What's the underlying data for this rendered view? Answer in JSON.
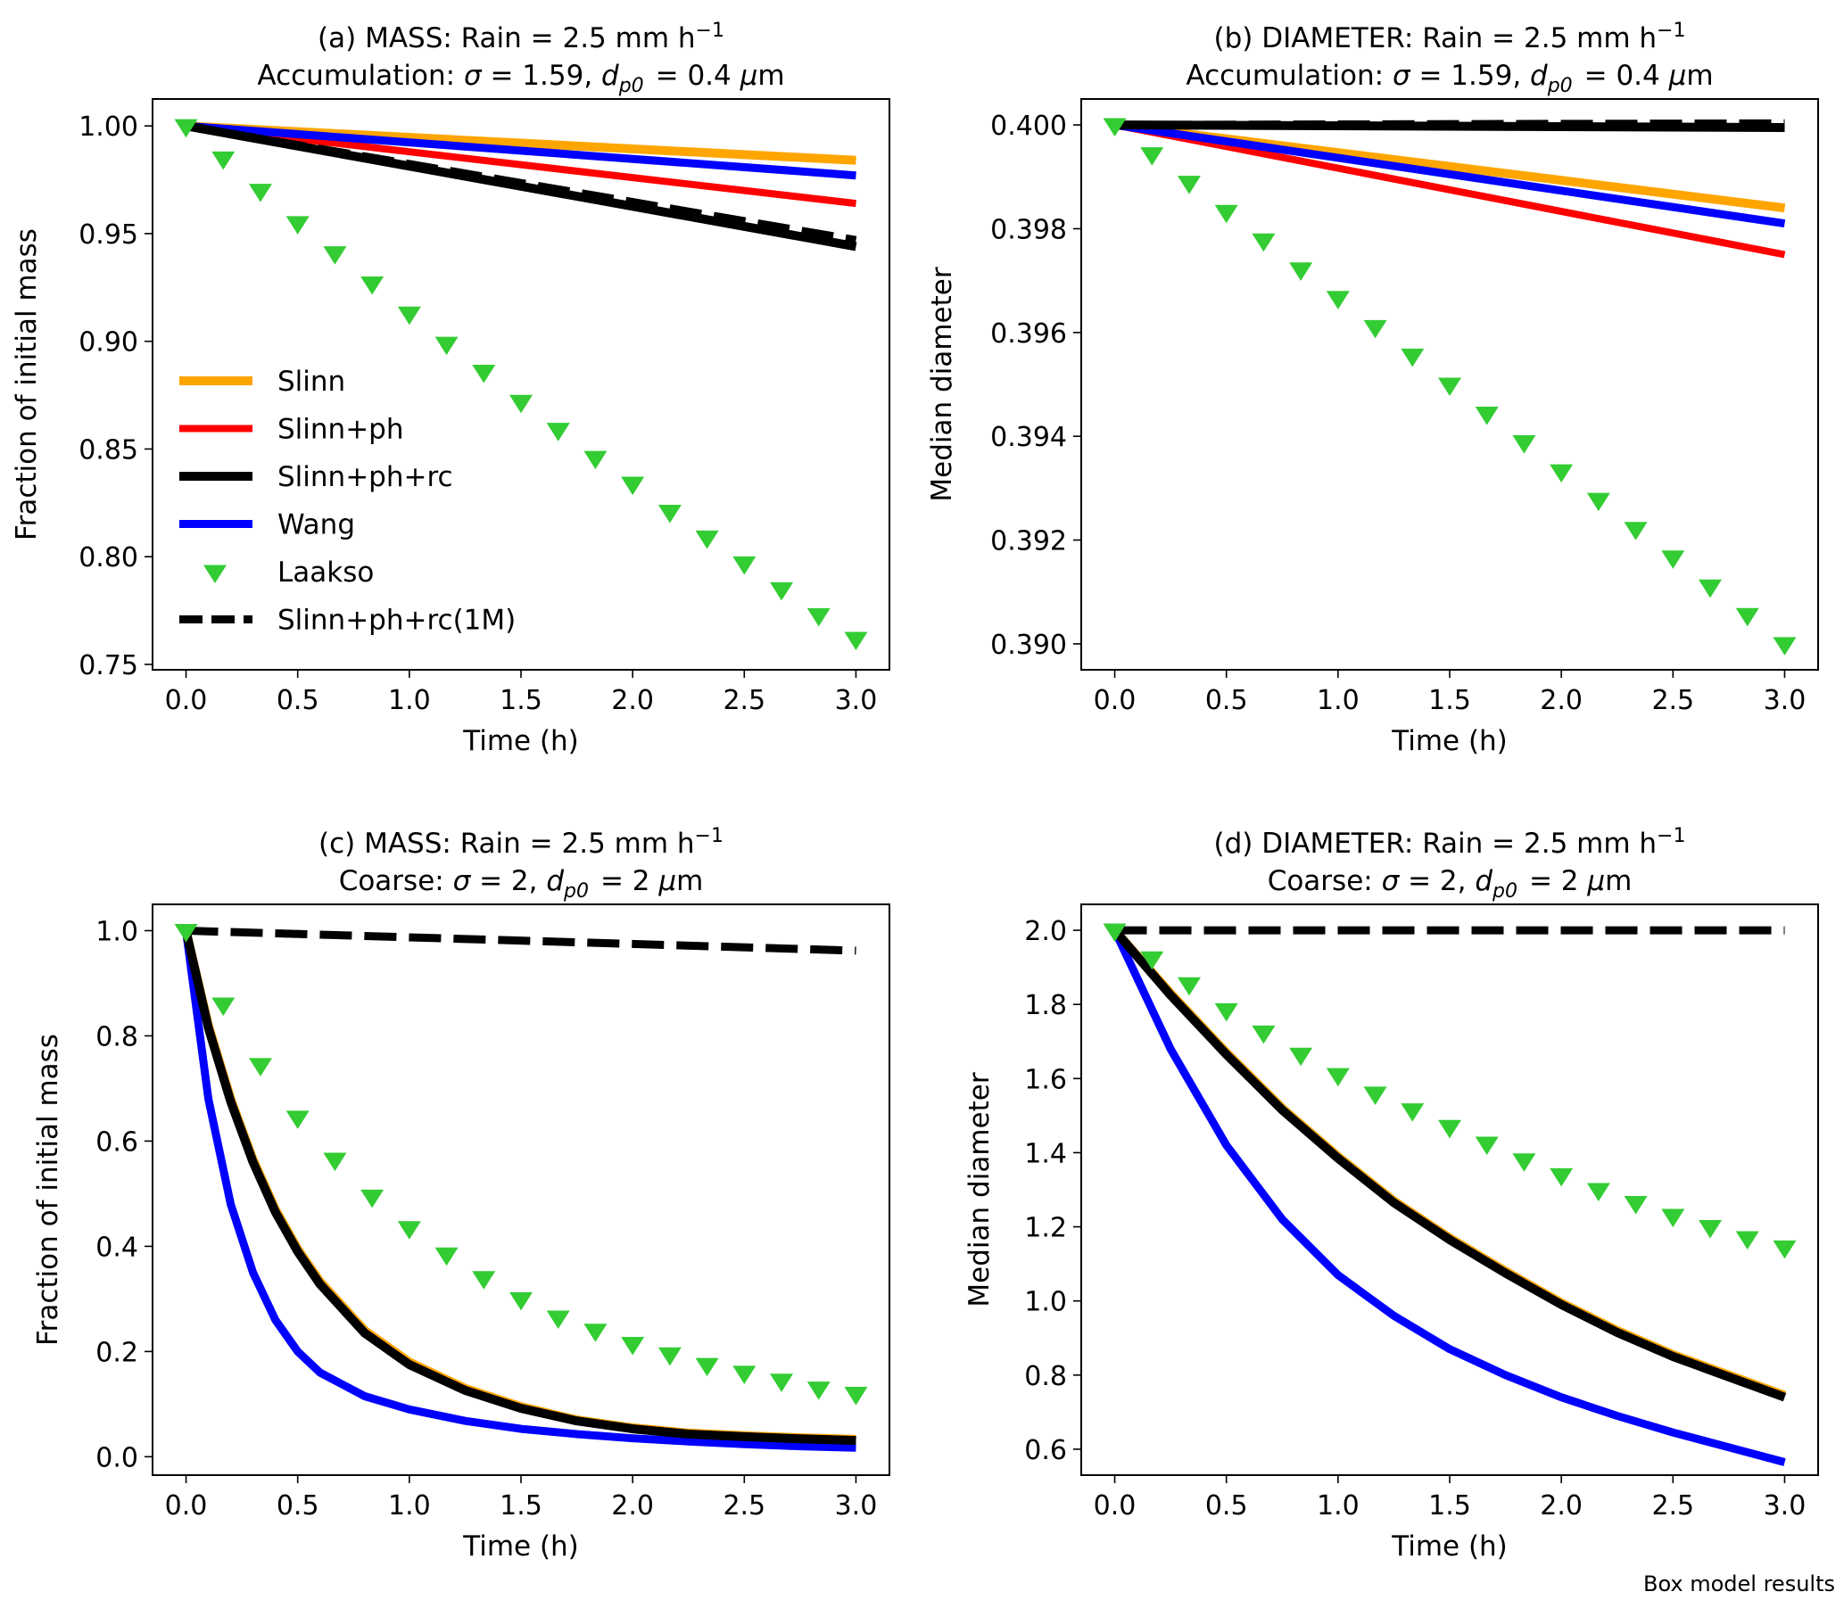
{
  "footer": "Box model results",
  "colors": {
    "Slinn": "#ffa500",
    "Slinn+ph": "#ff0000",
    "Slinn+ph+rc": "#000000",
    "Wang": "#0000ff",
    "Laakso": "#33cc33",
    "Slinn+ph+rc(1M)": "#000000"
  },
  "chart_data": [
    {
      "type": "line",
      "title_prefix": "(a) MASS: Rain = 2.5 mm h",
      "title_sup": "−1",
      "subtitle": "Accumulation: σ = 1.59, d_p0 = 0.4 μm",
      "xlabel": "Time (h)",
      "ylabel": "Fraction of initial mass",
      "xlim": [
        -0.15,
        3.15
      ],
      "ylim": [
        0.7475,
        1.0125
      ],
      "xticks": [
        "0.0",
        "0.5",
        "1.0",
        "1.5",
        "2.0",
        "2.5",
        "3.0"
      ],
      "yticks": [
        "0.75",
        "0.80",
        "0.85",
        "0.90",
        "0.95",
        "1.00"
      ],
      "legend": "center-left",
      "series": [
        {
          "name": "Slinn",
          "style": "line",
          "x": [
            0,
            3
          ],
          "y": [
            1.0,
            0.984
          ]
        },
        {
          "name": "Slinn+ph",
          "style": "line",
          "x": [
            0,
            3
          ],
          "y": [
            1.0,
            0.964
          ]
        },
        {
          "name": "Slinn+ph+rc",
          "style": "line",
          "x": [
            0,
            3
          ],
          "y": [
            1.0,
            0.944
          ]
        },
        {
          "name": "Wang",
          "style": "line",
          "x": [
            0,
            3
          ],
          "y": [
            1.0,
            0.977
          ]
        },
        {
          "name": "Laakso",
          "style": "markers",
          "x": [
            0,
            0.1667,
            0.3333,
            0.5,
            0.6667,
            0.8333,
            1.0,
            1.1667,
            1.3333,
            1.5,
            1.6667,
            1.8333,
            2.0,
            2.1667,
            2.3333,
            2.5,
            2.6667,
            2.8333,
            3.0
          ],
          "y": [
            1.0,
            0.985,
            0.97,
            0.955,
            0.941,
            0.927,
            0.913,
            0.899,
            0.886,
            0.872,
            0.859,
            0.846,
            0.834,
            0.821,
            0.809,
            0.797,
            0.785,
            0.773,
            0.762
          ]
        },
        {
          "name": "Slinn+ph+rc(1M)",
          "style": "dashed",
          "x": [
            0,
            3
          ],
          "y": [
            1.0,
            0.947
          ]
        }
      ]
    },
    {
      "type": "line",
      "title_prefix": "(b) DIAMETER: Rain = 2.5 mm h",
      "title_sup": "−1",
      "subtitle": "Accumulation: σ = 1.59, d_p0 = 0.4 μm",
      "xlabel": "Time (h)",
      "ylabel": "Median diameter",
      "xlim": [
        -0.15,
        3.15
      ],
      "ylim": [
        0.3895,
        0.4005
      ],
      "xticks": [
        "0.0",
        "0.5",
        "1.0",
        "1.5",
        "2.0",
        "2.5",
        "3.0"
      ],
      "yticks": [
        "0.390",
        "0.392",
        "0.394",
        "0.396",
        "0.398",
        "0.400"
      ],
      "series": [
        {
          "name": "Slinn",
          "style": "line",
          "x": [
            0,
            3
          ],
          "y": [
            0.4,
            0.3984
          ]
        },
        {
          "name": "Slinn+ph",
          "style": "line",
          "x": [
            0,
            3
          ],
          "y": [
            0.4,
            0.3975
          ]
        },
        {
          "name": "Slinn+ph+rc",
          "style": "line",
          "x": [
            0,
            3
          ],
          "y": [
            0.4,
            0.39995
          ]
        },
        {
          "name": "Wang",
          "style": "line",
          "x": [
            0,
            3
          ],
          "y": [
            0.4,
            0.3981
          ]
        },
        {
          "name": "Laakso",
          "style": "markers",
          "x": [
            0,
            0.1667,
            0.3333,
            0.5,
            0.6667,
            0.8333,
            1.0,
            1.1667,
            1.3333,
            1.5,
            1.6667,
            1.8333,
            2.0,
            2.1667,
            2.3333,
            2.5,
            2.6667,
            2.8333,
            3.0
          ],
          "y": [
            0.4,
            0.39944,
            0.39889,
            0.39833,
            0.39778,
            0.39722,
            0.39667,
            0.39611,
            0.39556,
            0.395,
            0.39444,
            0.39389,
            0.39333,
            0.39278,
            0.39222,
            0.39167,
            0.39111,
            0.39056,
            0.39
          ]
        },
        {
          "name": "Slinn+ph+rc(1M)",
          "style": "dashed",
          "x": [
            0,
            3
          ],
          "y": [
            0.4,
            0.40003
          ]
        }
      ]
    },
    {
      "type": "line",
      "title_prefix": "(c) MASS: Rain = 2.5 mm h",
      "title_sup": "−1",
      "subtitle": "Coarse: σ = 2, d_p0 = 2 μm",
      "xlabel": "Time (h)",
      "ylabel": "Fraction of initial mass",
      "xlim": [
        -0.15,
        3.15
      ],
      "ylim": [
        -0.035,
        1.05
      ],
      "xticks": [
        "0.0",
        "0.5",
        "1.0",
        "1.5",
        "2.0",
        "2.5",
        "3.0"
      ],
      "yticks": [
        "0.0",
        "0.2",
        "0.4",
        "0.6",
        "0.8",
        "1.0"
      ],
      "series": [
        {
          "name": "Slinn",
          "style": "line",
          "x": [
            0,
            0.1,
            0.2,
            0.3,
            0.4,
            0.5,
            0.6,
            0.8,
            1.0,
            1.25,
            1.5,
            1.75,
            2.0,
            2.25,
            2.5,
            2.75,
            3.0
          ],
          "y": [
            1.0,
            0.82,
            0.68,
            0.565,
            0.47,
            0.395,
            0.333,
            0.24,
            0.18,
            0.13,
            0.095,
            0.07,
            0.055,
            0.045,
            0.04,
            0.036,
            0.033
          ]
        },
        {
          "name": "Slinn+ph",
          "style": "line",
          "x": [
            0,
            0.1,
            0.2,
            0.3,
            0.4,
            0.5,
            0.6,
            0.8,
            1.0,
            1.25,
            1.5,
            1.75,
            2.0,
            2.25,
            2.5,
            2.75,
            3.0
          ],
          "y": [
            1.0,
            0.818,
            0.678,
            0.562,
            0.467,
            0.392,
            0.33,
            0.237,
            0.177,
            0.128,
            0.093,
            0.069,
            0.054,
            0.044,
            0.039,
            0.035,
            0.032
          ]
        },
        {
          "name": "Slinn+ph+rc",
          "style": "line",
          "x": [
            0,
            0.1,
            0.2,
            0.3,
            0.4,
            0.5,
            0.6,
            0.8,
            1.0,
            1.25,
            1.5,
            1.75,
            2.0,
            2.25,
            2.5,
            2.75,
            3.0
          ],
          "y": [
            1.0,
            0.815,
            0.675,
            0.56,
            0.465,
            0.39,
            0.328,
            0.235,
            0.175,
            0.126,
            0.092,
            0.068,
            0.053,
            0.043,
            0.038,
            0.034,
            0.031
          ]
        },
        {
          "name": "Wang",
          "style": "line",
          "x": [
            0,
            0.1,
            0.2,
            0.3,
            0.4,
            0.5,
            0.6,
            0.8,
            1.0,
            1.25,
            1.5,
            1.75,
            2.0,
            2.25,
            2.5,
            2.75,
            3.0
          ],
          "y": [
            1.0,
            0.68,
            0.48,
            0.35,
            0.26,
            0.2,
            0.16,
            0.115,
            0.09,
            0.068,
            0.053,
            0.043,
            0.035,
            0.029,
            0.024,
            0.02,
            0.017
          ]
        },
        {
          "name": "Laakso",
          "style": "markers",
          "x": [
            0,
            0.1667,
            0.3333,
            0.5,
            0.6667,
            0.8333,
            1.0,
            1.1667,
            1.3333,
            1.5,
            1.6667,
            1.8333,
            2.0,
            2.1667,
            2.3333,
            2.5,
            2.6667,
            2.8333,
            3.0
          ],
          "y": [
            1.0,
            0.86,
            0.745,
            0.645,
            0.565,
            0.495,
            0.435,
            0.385,
            0.34,
            0.3,
            0.265,
            0.24,
            0.215,
            0.195,
            0.175,
            0.16,
            0.145,
            0.13,
            0.12
          ]
        },
        {
          "name": "Slinn+ph+rc(1M)",
          "style": "dashed",
          "x": [
            0,
            3
          ],
          "y": [
            1.0,
            0.962
          ]
        }
      ]
    },
    {
      "type": "line",
      "title_prefix": "(d) DIAMETER: Rain = 2.5 mm h",
      "title_sup": "−1",
      "subtitle": "Coarse: σ = 2, d_p0 = 2 μm",
      "xlabel": "Time (h)",
      "ylabel": "Median diameter",
      "xlim": [
        -0.15,
        3.15
      ],
      "ylim": [
        0.53,
        2.07
      ],
      "xticks": [
        "0.0",
        "0.5",
        "1.0",
        "1.5",
        "2.0",
        "2.5",
        "3.0"
      ],
      "yticks": [
        "0.6",
        "0.8",
        "1.0",
        "1.2",
        "1.4",
        "1.6",
        "1.8",
        "2.0"
      ],
      "series": [
        {
          "name": "Slinn",
          "style": "line",
          "x": [
            0,
            0.25,
            0.5,
            0.75,
            1.0,
            1.25,
            1.5,
            1.75,
            2.0,
            2.25,
            2.5,
            2.75,
            3.0
          ],
          "y": [
            2.0,
            1.83,
            1.67,
            1.52,
            1.39,
            1.27,
            1.17,
            1.08,
            0.995,
            0.92,
            0.855,
            0.8,
            0.745
          ]
        },
        {
          "name": "Slinn+ph",
          "style": "line",
          "x": [
            0,
            0.25,
            0.5,
            0.75,
            1.0,
            1.25,
            1.5,
            1.75,
            2.0,
            2.25,
            2.5,
            2.75,
            3.0
          ],
          "y": [
            2.0,
            1.828,
            1.667,
            1.517,
            1.387,
            1.267,
            1.167,
            1.077,
            0.992,
            0.917,
            0.852,
            0.797,
            0.742
          ]
        },
        {
          "name": "Slinn+ph+rc",
          "style": "line",
          "x": [
            0,
            0.25,
            0.5,
            0.75,
            1.0,
            1.25,
            1.5,
            1.75,
            2.0,
            2.25,
            2.5,
            2.75,
            3.0
          ],
          "y": [
            2.0,
            1.825,
            1.665,
            1.515,
            1.385,
            1.265,
            1.165,
            1.075,
            0.99,
            0.915,
            0.85,
            0.795,
            0.74
          ]
        },
        {
          "name": "Wang",
          "style": "line",
          "x": [
            0,
            0.25,
            0.5,
            0.75,
            1.0,
            1.25,
            1.5,
            1.75,
            2.0,
            2.25,
            2.5,
            2.75,
            3.0
          ],
          "y": [
            2.0,
            1.68,
            1.42,
            1.22,
            1.07,
            0.96,
            0.87,
            0.8,
            0.74,
            0.69,
            0.645,
            0.605,
            0.565
          ]
        },
        {
          "name": "Laakso",
          "style": "markers",
          "x": [
            0,
            0.1667,
            0.3333,
            0.5,
            0.6667,
            0.8333,
            1.0,
            1.1667,
            1.3333,
            1.5,
            1.6667,
            1.8333,
            2.0,
            2.1667,
            2.3333,
            2.5,
            2.6667,
            2.8333,
            3.0
          ],
          "y": [
            2.0,
            1.925,
            1.855,
            1.785,
            1.725,
            1.665,
            1.61,
            1.56,
            1.515,
            1.47,
            1.425,
            1.38,
            1.34,
            1.3,
            1.265,
            1.23,
            1.2,
            1.17,
            1.145
          ]
        },
        {
          "name": "Slinn+ph+rc(1M)",
          "style": "dashed",
          "x": [
            0,
            3
          ],
          "y": [
            2.0,
            2.0
          ]
        }
      ]
    }
  ]
}
